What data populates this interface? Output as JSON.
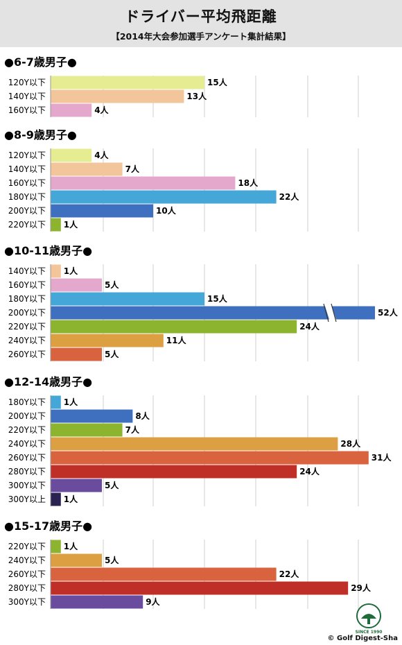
{
  "header": {
    "title": "ドライバー平均飛距離",
    "subtitle": "【2014年大会参加選手アンケート集計結果】"
  },
  "footer": {
    "copyright": "© Golf Digest-Sha",
    "logo_text": "SINCE 1990"
  },
  "colors": {
    "120Y以下": "#e6ec91",
    "140Y以下": "#f3c59b",
    "160Y以下": "#e3a8cc",
    "180Y以下": "#44a7d7",
    "200Y以下": "#3f6fbf",
    "220Y以下": "#8db42e",
    "240Y以下": "#dca042",
    "260Y以下": "#d9623f",
    "280Y以下": "#bf2f27",
    "300Y以下": "#6a4c9e",
    "300Y以上": "#2a2250"
  },
  "chart_data": [
    {
      "type": "bar",
      "title": "●6-7歳男子●",
      "categories": [
        "120Y以下",
        "140Y以下",
        "160Y以下"
      ],
      "values": [
        15,
        13,
        4
      ],
      "labels": [
        "15人",
        "13人",
        "4人"
      ]
    },
    {
      "type": "bar",
      "title": "●8-9歳男子●",
      "categories": [
        "120Y以下",
        "140Y以下",
        "160Y以下",
        "180Y以下",
        "200Y以下",
        "220Y以下"
      ],
      "values": [
        4,
        7,
        18,
        22,
        10,
        1
      ],
      "labels": [
        "4人",
        "7人",
        "18人",
        "22人",
        "10人",
        "1人"
      ]
    },
    {
      "type": "bar",
      "title": "●10-11歳男子●",
      "categories": [
        "140Y以下",
        "160Y以下",
        "180Y以下",
        "200Y以下",
        "220Y以下",
        "240Y以下",
        "260Y以下"
      ],
      "values": [
        1,
        5,
        15,
        52,
        24,
        11,
        5
      ],
      "labels": [
        "1人",
        "5人",
        "15人",
        "52人",
        "24人",
        "11人",
        "5人"
      ],
      "axis_break": true
    },
    {
      "type": "bar",
      "title": "●12-14歳男子●",
      "categories": [
        "180Y以下",
        "200Y以下",
        "220Y以下",
        "240Y以下",
        "260Y以下",
        "280Y以下",
        "300Y以下",
        "300Y以上"
      ],
      "values": [
        1,
        8,
        7,
        28,
        31,
        24,
        5,
        1
      ],
      "labels": [
        "1人",
        "8人",
        "7人",
        "28人",
        "31人",
        "24人",
        "5人",
        "1人"
      ]
    },
    {
      "type": "bar",
      "title": "●15-17歳男子●",
      "categories": [
        "220Y以下",
        "240Y以下",
        "260Y以下",
        "280Y以下",
        "300Y以下"
      ],
      "values": [
        1,
        5,
        22,
        29,
        9
      ],
      "labels": [
        "1人",
        "5人",
        "22人",
        "29人",
        "9人"
      ]
    }
  ]
}
